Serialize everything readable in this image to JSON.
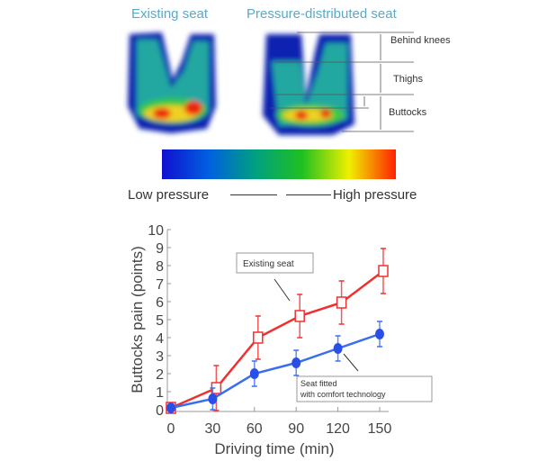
{
  "heatmaps": {
    "left_title": "Existing seat",
    "right_title": "Pressure-distributed seat",
    "regions": [
      "Behind knees",
      "Thighs",
      "Buttocks"
    ]
  },
  "colorbar": {
    "low_label": "Low pressure",
    "high_label": "High pressure",
    "colors": [
      "#1010d0",
      "#0060e0",
      "#00a080",
      "#20c020",
      "#f0f000",
      "#ff2000"
    ]
  },
  "chart_data": {
    "type": "line",
    "xlabel": "Driving time (min)",
    "ylabel": "Buttocks pain (points)",
    "x": [
      0,
      30,
      60,
      90,
      120,
      150
    ],
    "xticks": [
      "0",
      "30",
      "60",
      "90",
      "120",
      "150"
    ],
    "yticks": [
      "0",
      "1",
      "2",
      "3",
      "4",
      "5",
      "6",
      "7",
      "8",
      "9",
      "10"
    ],
    "xlim": [
      0,
      150
    ],
    "ylim": [
      0,
      10
    ],
    "grid": false,
    "series": [
      {
        "name": "Existing seat",
        "color": "#f03030",
        "marker": "open-square",
        "values": [
          0.1,
          1.2,
          4.0,
          5.2,
          5.95,
          7.7
        ],
        "error": [
          0,
          1.25,
          1.2,
          1.2,
          1.2,
          1.25
        ]
      },
      {
        "name": "Seat fitted with comfort technology",
        "color": "#3a6ef0",
        "marker": "filled-circle",
        "values": [
          0.1,
          0.6,
          2.0,
          2.6,
          3.4,
          4.2
        ],
        "error": [
          0,
          0.6,
          0.7,
          0.7,
          0.7,
          0.7
        ]
      }
    ],
    "annotations": [
      "Existing seat",
      "Seat fitted",
      "with comfort technology"
    ]
  }
}
